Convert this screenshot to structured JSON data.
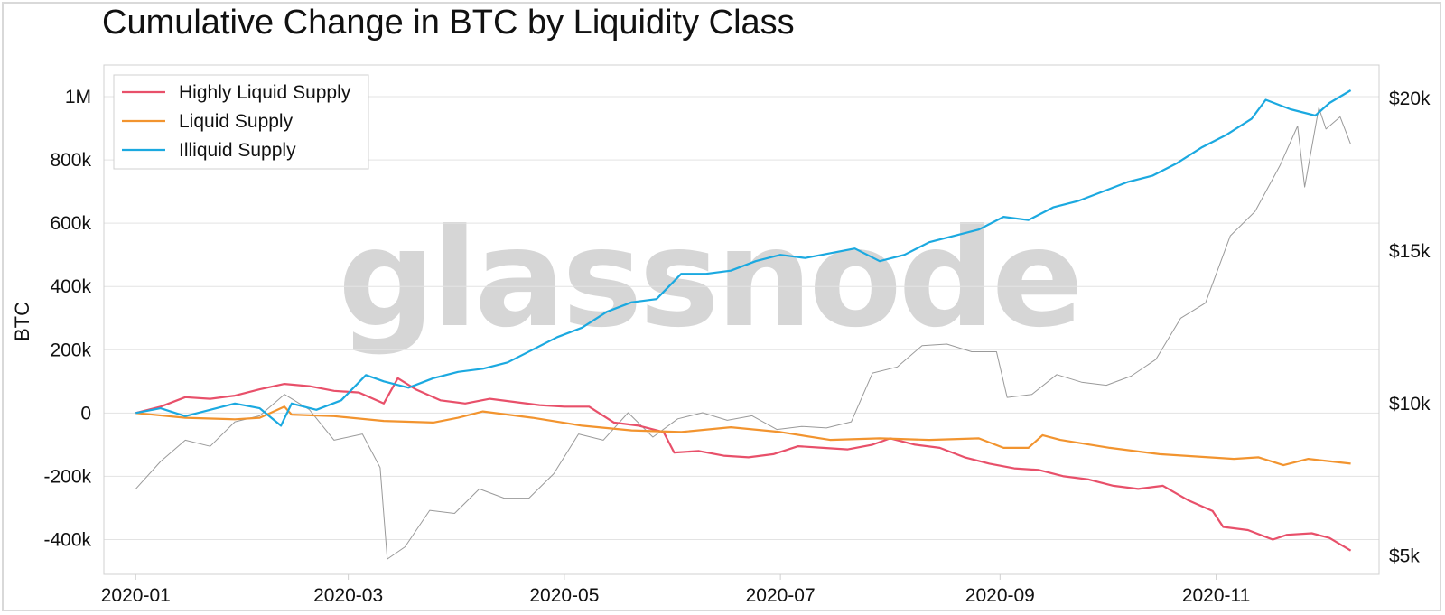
{
  "chart_data": {
    "type": "line",
    "title": "Cumulative Change in BTC by Liquidity Class",
    "ylabel": "BTC",
    "watermark": "glassnode",
    "grid": true,
    "legend_position": "top-left",
    "x_axis": {
      "type": "date",
      "range": [
        "2019-12-23",
        "2020-12-17"
      ],
      "ticks": [
        "2020-01-01",
        "2020-03-01",
        "2020-05-01",
        "2020-07-01",
        "2020-09-01",
        "2020-11-01"
      ],
      "tick_labels": [
        "2020-01",
        "2020-03",
        "2020-05",
        "2020-07",
        "2020-09",
        "2020-11"
      ]
    },
    "y_axis_left": {
      "label": "BTC",
      "range": [
        -510000,
        1100000
      ],
      "ticks": [
        -400000,
        -200000,
        0,
        200000,
        400000,
        600000,
        800000,
        1000000
      ],
      "tick_labels": [
        "-400k",
        "-200k",
        "0",
        "200k",
        "400k",
        "600k",
        "800k",
        "1M"
      ]
    },
    "y_axis_right": {
      "range": [
        4400,
        21100
      ],
      "ticks": [
        5000,
        10000,
        15000,
        20000
      ],
      "tick_labels": [
        "$5k",
        "$10k",
        "$15k",
        "$20k"
      ]
    },
    "series": [
      {
        "name": "Highly Liquid Supply",
        "color": "#e8506a",
        "axis": "left",
        "points": [
          [
            "2020-01-01",
            0
          ],
          [
            "2020-01-08",
            20000
          ],
          [
            "2020-01-15",
            50000
          ],
          [
            "2020-01-22",
            45000
          ],
          [
            "2020-01-29",
            55000
          ],
          [
            "2020-02-05",
            75000
          ],
          [
            "2020-02-12",
            92000
          ],
          [
            "2020-02-19",
            85000
          ],
          [
            "2020-02-26",
            70000
          ],
          [
            "2020-03-04",
            65000
          ],
          [
            "2020-03-11",
            30000
          ],
          [
            "2020-03-15",
            110000
          ],
          [
            "2020-03-20",
            75000
          ],
          [
            "2020-03-27",
            40000
          ],
          [
            "2020-04-03",
            30000
          ],
          [
            "2020-04-10",
            45000
          ],
          [
            "2020-04-17",
            35000
          ],
          [
            "2020-04-24",
            25000
          ],
          [
            "2020-05-01",
            20000
          ],
          [
            "2020-05-08",
            20000
          ],
          [
            "2020-05-15",
            -30000
          ],
          [
            "2020-05-22",
            -40000
          ],
          [
            "2020-05-29",
            -60000
          ],
          [
            "2020-06-01",
            -125000
          ],
          [
            "2020-06-08",
            -120000
          ],
          [
            "2020-06-15",
            -135000
          ],
          [
            "2020-06-22",
            -140000
          ],
          [
            "2020-06-29",
            -130000
          ],
          [
            "2020-07-06",
            -105000
          ],
          [
            "2020-07-13",
            -110000
          ],
          [
            "2020-07-20",
            -115000
          ],
          [
            "2020-07-27",
            -100000
          ],
          [
            "2020-08-01",
            -80000
          ],
          [
            "2020-08-08",
            -100000
          ],
          [
            "2020-08-15",
            -110000
          ],
          [
            "2020-08-22",
            -140000
          ],
          [
            "2020-08-29",
            -160000
          ],
          [
            "2020-09-05",
            -175000
          ],
          [
            "2020-09-12",
            -180000
          ],
          [
            "2020-09-19",
            -200000
          ],
          [
            "2020-09-26",
            -210000
          ],
          [
            "2020-10-03",
            -230000
          ],
          [
            "2020-10-10",
            -240000
          ],
          [
            "2020-10-17",
            -230000
          ],
          [
            "2020-10-24",
            -275000
          ],
          [
            "2020-10-31",
            -310000
          ],
          [
            "2020-11-03",
            -360000
          ],
          [
            "2020-11-10",
            -370000
          ],
          [
            "2020-11-17",
            -400000
          ],
          [
            "2020-11-21",
            -385000
          ],
          [
            "2020-11-28",
            -380000
          ],
          [
            "2020-12-03",
            -395000
          ],
          [
            "2020-12-09",
            -435000
          ]
        ]
      },
      {
        "name": "Liquid Supply",
        "color": "#f2942f",
        "axis": "left",
        "points": [
          [
            "2020-01-01",
            0
          ],
          [
            "2020-01-15",
            -15000
          ],
          [
            "2020-01-29",
            -20000
          ],
          [
            "2020-02-05",
            -15000
          ],
          [
            "2020-02-12",
            20000
          ],
          [
            "2020-02-14",
            -5000
          ],
          [
            "2020-02-26",
            -10000
          ],
          [
            "2020-03-11",
            -25000
          ],
          [
            "2020-03-25",
            -30000
          ],
          [
            "2020-04-01",
            -15000
          ],
          [
            "2020-04-08",
            5000
          ],
          [
            "2020-04-22",
            -15000
          ],
          [
            "2020-05-06",
            -40000
          ],
          [
            "2020-05-20",
            -55000
          ],
          [
            "2020-06-03",
            -60000
          ],
          [
            "2020-06-17",
            -45000
          ],
          [
            "2020-07-01",
            -60000
          ],
          [
            "2020-07-15",
            -85000
          ],
          [
            "2020-07-29",
            -80000
          ],
          [
            "2020-08-12",
            -85000
          ],
          [
            "2020-08-26",
            -80000
          ],
          [
            "2020-09-02",
            -110000
          ],
          [
            "2020-09-09",
            -110000
          ],
          [
            "2020-09-13",
            -70000
          ],
          [
            "2020-09-18",
            -85000
          ],
          [
            "2020-10-02",
            -110000
          ],
          [
            "2020-10-16",
            -130000
          ],
          [
            "2020-10-30",
            -140000
          ],
          [
            "2020-11-06",
            -145000
          ],
          [
            "2020-11-13",
            -140000
          ],
          [
            "2020-11-20",
            -165000
          ],
          [
            "2020-11-27",
            -145000
          ],
          [
            "2020-12-09",
            -160000
          ]
        ]
      },
      {
        "name": "Illiquid Supply",
        "color": "#1ba9e0",
        "axis": "left",
        "points": [
          [
            "2020-01-01",
            0
          ],
          [
            "2020-01-08",
            15000
          ],
          [
            "2020-01-15",
            -10000
          ],
          [
            "2020-01-22",
            10000
          ],
          [
            "2020-01-29",
            30000
          ],
          [
            "2020-02-05",
            15000
          ],
          [
            "2020-02-11",
            -40000
          ],
          [
            "2020-02-14",
            30000
          ],
          [
            "2020-02-21",
            10000
          ],
          [
            "2020-02-28",
            40000
          ],
          [
            "2020-03-06",
            120000
          ],
          [
            "2020-03-11",
            100000
          ],
          [
            "2020-03-18",
            80000
          ],
          [
            "2020-03-25",
            110000
          ],
          [
            "2020-04-01",
            130000
          ],
          [
            "2020-04-08",
            140000
          ],
          [
            "2020-04-15",
            160000
          ],
          [
            "2020-04-22",
            200000
          ],
          [
            "2020-04-29",
            240000
          ],
          [
            "2020-05-06",
            270000
          ],
          [
            "2020-05-13",
            320000
          ],
          [
            "2020-05-20",
            350000
          ],
          [
            "2020-05-27",
            360000
          ],
          [
            "2020-06-03",
            440000
          ],
          [
            "2020-06-10",
            440000
          ],
          [
            "2020-06-17",
            450000
          ],
          [
            "2020-06-24",
            480000
          ],
          [
            "2020-07-01",
            500000
          ],
          [
            "2020-07-08",
            490000
          ],
          [
            "2020-07-15",
            505000
          ],
          [
            "2020-07-22",
            520000
          ],
          [
            "2020-07-29",
            480000
          ],
          [
            "2020-08-05",
            500000
          ],
          [
            "2020-08-12",
            540000
          ],
          [
            "2020-08-19",
            560000
          ],
          [
            "2020-08-26",
            580000
          ],
          [
            "2020-09-02",
            620000
          ],
          [
            "2020-09-09",
            610000
          ],
          [
            "2020-09-16",
            650000
          ],
          [
            "2020-09-23",
            670000
          ],
          [
            "2020-09-30",
            700000
          ],
          [
            "2020-10-07",
            730000
          ],
          [
            "2020-10-14",
            750000
          ],
          [
            "2020-10-21",
            790000
          ],
          [
            "2020-10-28",
            840000
          ],
          [
            "2020-11-04",
            880000
          ],
          [
            "2020-11-11",
            930000
          ],
          [
            "2020-11-15",
            990000
          ],
          [
            "2020-11-22",
            960000
          ],
          [
            "2020-11-29",
            940000
          ],
          [
            "2020-12-03",
            980000
          ],
          [
            "2020-12-09",
            1020000
          ]
        ]
      },
      {
        "name": "",
        "color": "#9a9a9a",
        "axis": "right",
        "points": [
          [
            "2020-01-01",
            7200
          ],
          [
            "2020-01-08",
            8100
          ],
          [
            "2020-01-15",
            8800
          ],
          [
            "2020-01-22",
            8600
          ],
          [
            "2020-01-29",
            9400
          ],
          [
            "2020-02-05",
            9600
          ],
          [
            "2020-02-12",
            10300
          ],
          [
            "2020-02-19",
            9800
          ],
          [
            "2020-02-26",
            8800
          ],
          [
            "2020-03-05",
            9000
          ],
          [
            "2020-03-10",
            7900
          ],
          [
            "2020-03-12",
            4900
          ],
          [
            "2020-03-17",
            5300
          ],
          [
            "2020-03-24",
            6500
          ],
          [
            "2020-03-31",
            6400
          ],
          [
            "2020-04-07",
            7200
          ],
          [
            "2020-04-14",
            6900
          ],
          [
            "2020-04-21",
            6900
          ],
          [
            "2020-04-28",
            7700
          ],
          [
            "2020-05-05",
            9000
          ],
          [
            "2020-05-12",
            8800
          ],
          [
            "2020-05-19",
            9700
          ],
          [
            "2020-05-26",
            8900
          ],
          [
            "2020-06-02",
            9500
          ],
          [
            "2020-06-09",
            9700
          ],
          [
            "2020-06-16",
            9450
          ],
          [
            "2020-06-23",
            9600
          ],
          [
            "2020-06-30",
            9150
          ],
          [
            "2020-07-07",
            9250
          ],
          [
            "2020-07-14",
            9200
          ],
          [
            "2020-07-21",
            9400
          ],
          [
            "2020-07-27",
            11000
          ],
          [
            "2020-08-03",
            11200
          ],
          [
            "2020-08-10",
            11900
          ],
          [
            "2020-08-17",
            11950
          ],
          [
            "2020-08-24",
            11700
          ],
          [
            "2020-08-31",
            11700
          ],
          [
            "2020-09-03",
            10200
          ],
          [
            "2020-09-10",
            10300
          ],
          [
            "2020-09-17",
            10950
          ],
          [
            "2020-09-24",
            10700
          ],
          [
            "2020-10-01",
            10600
          ],
          [
            "2020-10-08",
            10900
          ],
          [
            "2020-10-15",
            11450
          ],
          [
            "2020-10-22",
            12800
          ],
          [
            "2020-10-29",
            13300
          ],
          [
            "2020-11-05",
            15500
          ],
          [
            "2020-11-12",
            16300
          ],
          [
            "2020-11-19",
            17800
          ],
          [
            "2020-11-24",
            19100
          ],
          [
            "2020-11-26",
            17100
          ],
          [
            "2020-11-30",
            19700
          ],
          [
            "2020-12-02",
            19000
          ],
          [
            "2020-12-06",
            19400
          ],
          [
            "2020-12-09",
            18500
          ]
        ]
      }
    ]
  }
}
